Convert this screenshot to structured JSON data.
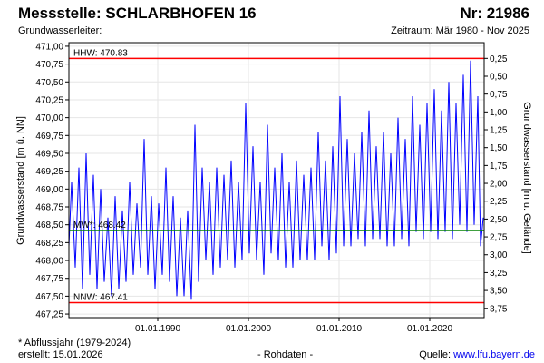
{
  "header": {
    "station": "Messstelle: SCHLARBHOFEN 16",
    "number": "Nr: 21986",
    "aquifer": "Grundwasserleiter:",
    "period": "Zeitraum: Mär 1980 - Nov 2025"
  },
  "footer": {
    "note": "* Abflussjahr (1979-2024)",
    "created": "erstellt:  15.01.2026",
    "rawdata": "- Rohdaten -",
    "source_label": "Quelle: ",
    "source_link": "www.lfu.bayern.de"
  },
  "colors": {
    "series": "#0000ff",
    "hhw": "#ff0000",
    "nnw": "#ff0000",
    "mw": "#008000",
    "grid": "#e6e6e6",
    "axis": "#000000"
  },
  "chart_data": {
    "type": "line",
    "ylabel": "Grundwasserstand [m ü. NN]",
    "ylabel_right": "Grundwasserstand [m u. Gelände]",
    "ylim": [
      467.25,
      471.0
    ],
    "y_ticks": [
      "467,25",
      "467,50",
      "467,75",
      "468,00",
      "468,25",
      "468,50",
      "468,75",
      "469,00",
      "469,25",
      "469,50",
      "469,75",
      "470,00",
      "470,25",
      "470,50",
      "470,75",
      "471,00"
    ],
    "y2_ticks": [
      "3,75",
      "3,50",
      "3,25",
      "3,00",
      "2,75",
      "2,50",
      "2,25",
      "2,00",
      "1,75",
      "1,50",
      "1,25",
      "1,00",
      "0,75",
      "0,50",
      "0,25"
    ],
    "y2_offset": 471.08,
    "x_range": [
      1980.2,
      2026.0
    ],
    "x_ticks": [
      {
        "label": "01.01.1990",
        "year": 1990
      },
      {
        "label": "01.01.2000",
        "year": 2000
      },
      {
        "label": "01.01.2010",
        "year": 2010
      },
      {
        "label": "01.01.2020",
        "year": 2020
      }
    ],
    "grid": true,
    "reference_lines": [
      {
        "key": "hhw",
        "label": "HHW: 470.83",
        "value": 470.83
      },
      {
        "key": "mw",
        "label": "MW*: 468.42",
        "value": 468.42
      },
      {
        "key": "nnw",
        "label": "NNW: 467.41",
        "value": 467.41
      }
    ],
    "series": [
      {
        "points": [
          [
            1980.2,
            468.2
          ],
          [
            1980.5,
            469.1
          ],
          [
            1980.9,
            467.9
          ],
          [
            1981.3,
            469.3
          ],
          [
            1981.7,
            467.6
          ],
          [
            1982.1,
            469.5
          ],
          [
            1982.5,
            467.8
          ],
          [
            1982.9,
            469.2
          ],
          [
            1983.3,
            467.6
          ],
          [
            1983.7,
            469.0
          ],
          [
            1984.1,
            467.7
          ],
          [
            1984.5,
            468.6
          ],
          [
            1984.9,
            467.5
          ],
          [
            1985.3,
            468.9
          ],
          [
            1985.7,
            467.6
          ],
          [
            1986.1,
            468.7
          ],
          [
            1986.5,
            467.7
          ],
          [
            1986.9,
            469.1
          ],
          [
            1987.3,
            467.8
          ],
          [
            1987.7,
            468.8
          ],
          [
            1988.1,
            467.9
          ],
          [
            1988.5,
            469.7
          ],
          [
            1988.9,
            467.8
          ],
          [
            1989.3,
            468.9
          ],
          [
            1989.7,
            467.6
          ],
          [
            1990.1,
            468.8
          ],
          [
            1990.5,
            467.8
          ],
          [
            1990.9,
            469.3
          ],
          [
            1991.3,
            467.7
          ],
          [
            1991.7,
            468.9
          ],
          [
            1992.1,
            467.5
          ],
          [
            1992.5,
            468.6
          ],
          [
            1992.9,
            467.5
          ],
          [
            1993.3,
            468.7
          ],
          [
            1993.7,
            467.45
          ],
          [
            1994.1,
            469.9
          ],
          [
            1994.5,
            467.7
          ],
          [
            1994.9,
            469.3
          ],
          [
            1995.3,
            468.0
          ],
          [
            1995.7,
            469.1
          ],
          [
            1996.1,
            467.8
          ],
          [
            1996.5,
            469.3
          ],
          [
            1996.9,
            467.9
          ],
          [
            1997.3,
            469.2
          ],
          [
            1997.7,
            468.0
          ],
          [
            1998.1,
            469.4
          ],
          [
            1998.5,
            467.9
          ],
          [
            1998.9,
            469.1
          ],
          [
            1999.3,
            468.0
          ],
          [
            1999.7,
            470.2
          ],
          [
            2000.1,
            468.1
          ],
          [
            2000.5,
            469.6
          ],
          [
            2000.9,
            468.0
          ],
          [
            2001.3,
            469.1
          ],
          [
            2001.7,
            467.8
          ],
          [
            2002.1,
            469.9
          ],
          [
            2002.5,
            468.1
          ],
          [
            2002.9,
            469.3
          ],
          [
            2003.3,
            468.0
          ],
          [
            2003.7,
            469.5
          ],
          [
            2004.1,
            467.9
          ],
          [
            2004.5,
            469.1
          ],
          [
            2004.9,
            467.9
          ],
          [
            2005.3,
            469.4
          ],
          [
            2005.7,
            468.0
          ],
          [
            2006.1,
            469.2
          ],
          [
            2006.5,
            468.0
          ],
          [
            2006.9,
            469.3
          ],
          [
            2007.3,
            468.0
          ],
          [
            2007.7,
            469.8
          ],
          [
            2008.1,
            468.2
          ],
          [
            2008.5,
            469.4
          ],
          [
            2008.9,
            468.0
          ],
          [
            2009.3,
            469.6
          ],
          [
            2009.7,
            468.1
          ],
          [
            2010.1,
            470.3
          ],
          [
            2010.5,
            468.2
          ],
          [
            2010.9,
            469.7
          ],
          [
            2011.3,
            468.2
          ],
          [
            2011.7,
            469.5
          ],
          [
            2012.1,
            468.3
          ],
          [
            2012.5,
            469.8
          ],
          [
            2012.9,
            468.2
          ],
          [
            2013.3,
            470.1
          ],
          [
            2013.7,
            468.3
          ],
          [
            2014.1,
            469.6
          ],
          [
            2014.5,
            468.3
          ],
          [
            2014.9,
            469.8
          ],
          [
            2015.3,
            468.2
          ],
          [
            2015.7,
            469.5
          ],
          [
            2016.1,
            468.2
          ],
          [
            2016.5,
            470.0
          ],
          [
            2016.9,
            468.3
          ],
          [
            2017.3,
            469.7
          ],
          [
            2017.7,
            468.2
          ],
          [
            2018.1,
            470.3
          ],
          [
            2018.5,
            468.4
          ],
          [
            2018.9,
            469.9
          ],
          [
            2019.3,
            468.3
          ],
          [
            2019.7,
            470.2
          ],
          [
            2020.1,
            468.4
          ],
          [
            2020.5,
            470.4
          ],
          [
            2020.9,
            468.3
          ],
          [
            2021.3,
            470.1
          ],
          [
            2021.7,
            468.4
          ],
          [
            2022.1,
            470.5
          ],
          [
            2022.5,
            468.3
          ],
          [
            2022.9,
            470.2
          ],
          [
            2023.3,
            468.5
          ],
          [
            2023.7,
            470.6
          ],
          [
            2024.1,
            468.4
          ],
          [
            2024.5,
            470.8
          ],
          [
            2024.9,
            468.5
          ],
          [
            2025.3,
            470.3
          ],
          [
            2025.6,
            468.2
          ],
          [
            2025.9,
            468.6
          ]
        ]
      }
    ]
  }
}
